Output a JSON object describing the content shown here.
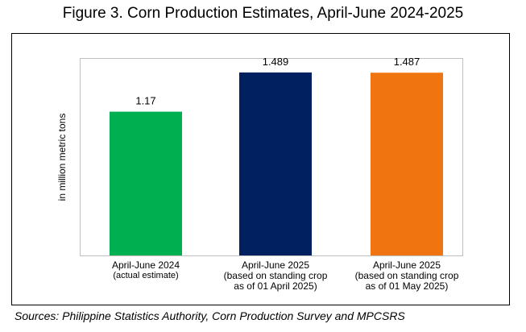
{
  "title": "Figure 3. Corn Production Estimates, April-June 2024-2025",
  "source": "Sources: Philippine Statistics Authority, Corn Production Survey and MPCSRS",
  "chart_data": {
    "type": "bar",
    "title": "Figure 3. Corn Production Estimates, April-June 2024-2025",
    "ylabel": "in million metric tons",
    "xlabel": "",
    "ylim": [
      0,
      1.6
    ],
    "grid": false,
    "categories": [
      {
        "label": "April-June 2024",
        "sub": [
          "(actual estimate)"
        ]
      },
      {
        "label": "April-June 2025",
        "sub": [
          "(based on standing crop",
          "as of 01 April 2025)"
        ]
      },
      {
        "label": "April-June 2025",
        "sub": [
          "(based on standing crop",
          "as of 01 May 2025)"
        ]
      }
    ],
    "values": [
      1.17,
      1.489,
      1.487
    ],
    "value_labels": [
      "1.17",
      "1.489",
      "1.487"
    ],
    "colors": [
      "#00b050",
      "#002060",
      "#f07510"
    ]
  }
}
